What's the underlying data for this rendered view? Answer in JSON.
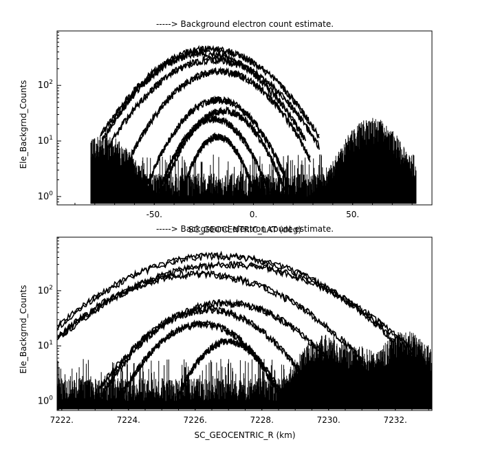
{
  "chart_data": [
    {
      "type": "line",
      "title": "-----> Background electron count estimate.",
      "xlabel": "SC_GEOCENTRIC_LAT (deg)",
      "ylabel": "Ele_Backgrnd_Counts",
      "xlim": [
        -99,
        90
      ],
      "ylim_log10": [
        -0.15,
        2.98
      ],
      "yscale": "log",
      "grid": false,
      "x_tick_labels": [
        {
          "x": -50,
          "label": "-50."
        },
        {
          "x": 0,
          "label": "0."
        },
        {
          "x": 50,
          "label": "50."
        }
      ],
      "y_tick_labels": [
        {
          "y": 1,
          "label": "10^0"
        },
        {
          "y": 10,
          "label": "10^1"
        },
        {
          "y": 100,
          "label": "10^2"
        }
      ],
      "noise_x_range": [
        -82,
        82
      ],
      "series": [
        {
          "peak_x": -22,
          "peak_y": 450,
          "width": 29
        },
        {
          "peak_x": -25,
          "peak_y": 380,
          "width": 27
        },
        {
          "peak_x": -20,
          "peak_y": 290,
          "width": 28
        },
        {
          "peak_x": -17,
          "peak_y": 180,
          "width": 24
        },
        {
          "peak_x": -18,
          "peak_y": 55,
          "width": 19
        },
        {
          "peak_x": -15,
          "peak_y": 35,
          "width": 17
        },
        {
          "peak_x": -20,
          "peak_y": 25,
          "width": 16
        },
        {
          "peak_x": -18,
          "peak_y": 12,
          "width": 12
        }
      ],
      "side_bursts": [
        {
          "center_x": -75,
          "peak_y": 12
        },
        {
          "center_x": 60,
          "peak_y": 25
        }
      ]
    },
    {
      "type": "line",
      "title": "-----> Background electron count estimate.",
      "xlabel": "SC_GEOCENTRIC_R (km)",
      "ylabel": "Ele_Backgrnd_Counts",
      "xlim": [
        7221.86,
        7233.1
      ],
      "ylim_log10": [
        -0.17,
        2.97
      ],
      "yscale": "log",
      "grid": false,
      "x_tick_labels": [
        {
          "x": 7222,
          "label": "7222."
        },
        {
          "x": 7224,
          "label": "7224."
        },
        {
          "x": 7226,
          "label": "7226."
        },
        {
          "x": 7228,
          "label": "7228."
        },
        {
          "x": 7230,
          "label": "7230."
        },
        {
          "x": 7232,
          "label": "7232."
        }
      ],
      "y_tick_labels": [
        {
          "y": 1,
          "label": "10^0"
        },
        {
          "y": 10,
          "label": "10^1"
        },
        {
          "y": 100,
          "label": "10^2"
        }
      ],
      "noise_x_range": [
        7221.86,
        7233.1
      ],
      "series": [
        {
          "peak_x": 7226.7,
          "peak_y": 430,
          "width": 2.8
        },
        {
          "peak_x": 7227.0,
          "peak_y": 300,
          "width": 2.9
        },
        {
          "peak_x": 7226.1,
          "peak_y": 200,
          "width": 2.6
        },
        {
          "peak_x": 7226.9,
          "peak_y": 60,
          "width": 2.0
        },
        {
          "peak_x": 7226.4,
          "peak_y": 45,
          "width": 1.7
        },
        {
          "peak_x": 7226.2,
          "peak_y": 25,
          "width": 1.4
        },
        {
          "peak_x": 7227.0,
          "peak_y": 12,
          "width": 1.0
        }
      ],
      "side_bursts": [
        {
          "center_x": 7229.9,
          "peak_y": 15
        },
        {
          "center_x": 7230.8,
          "peak_y": 10
        },
        {
          "center_x": 7232.3,
          "peak_y": 18
        }
      ]
    }
  ]
}
